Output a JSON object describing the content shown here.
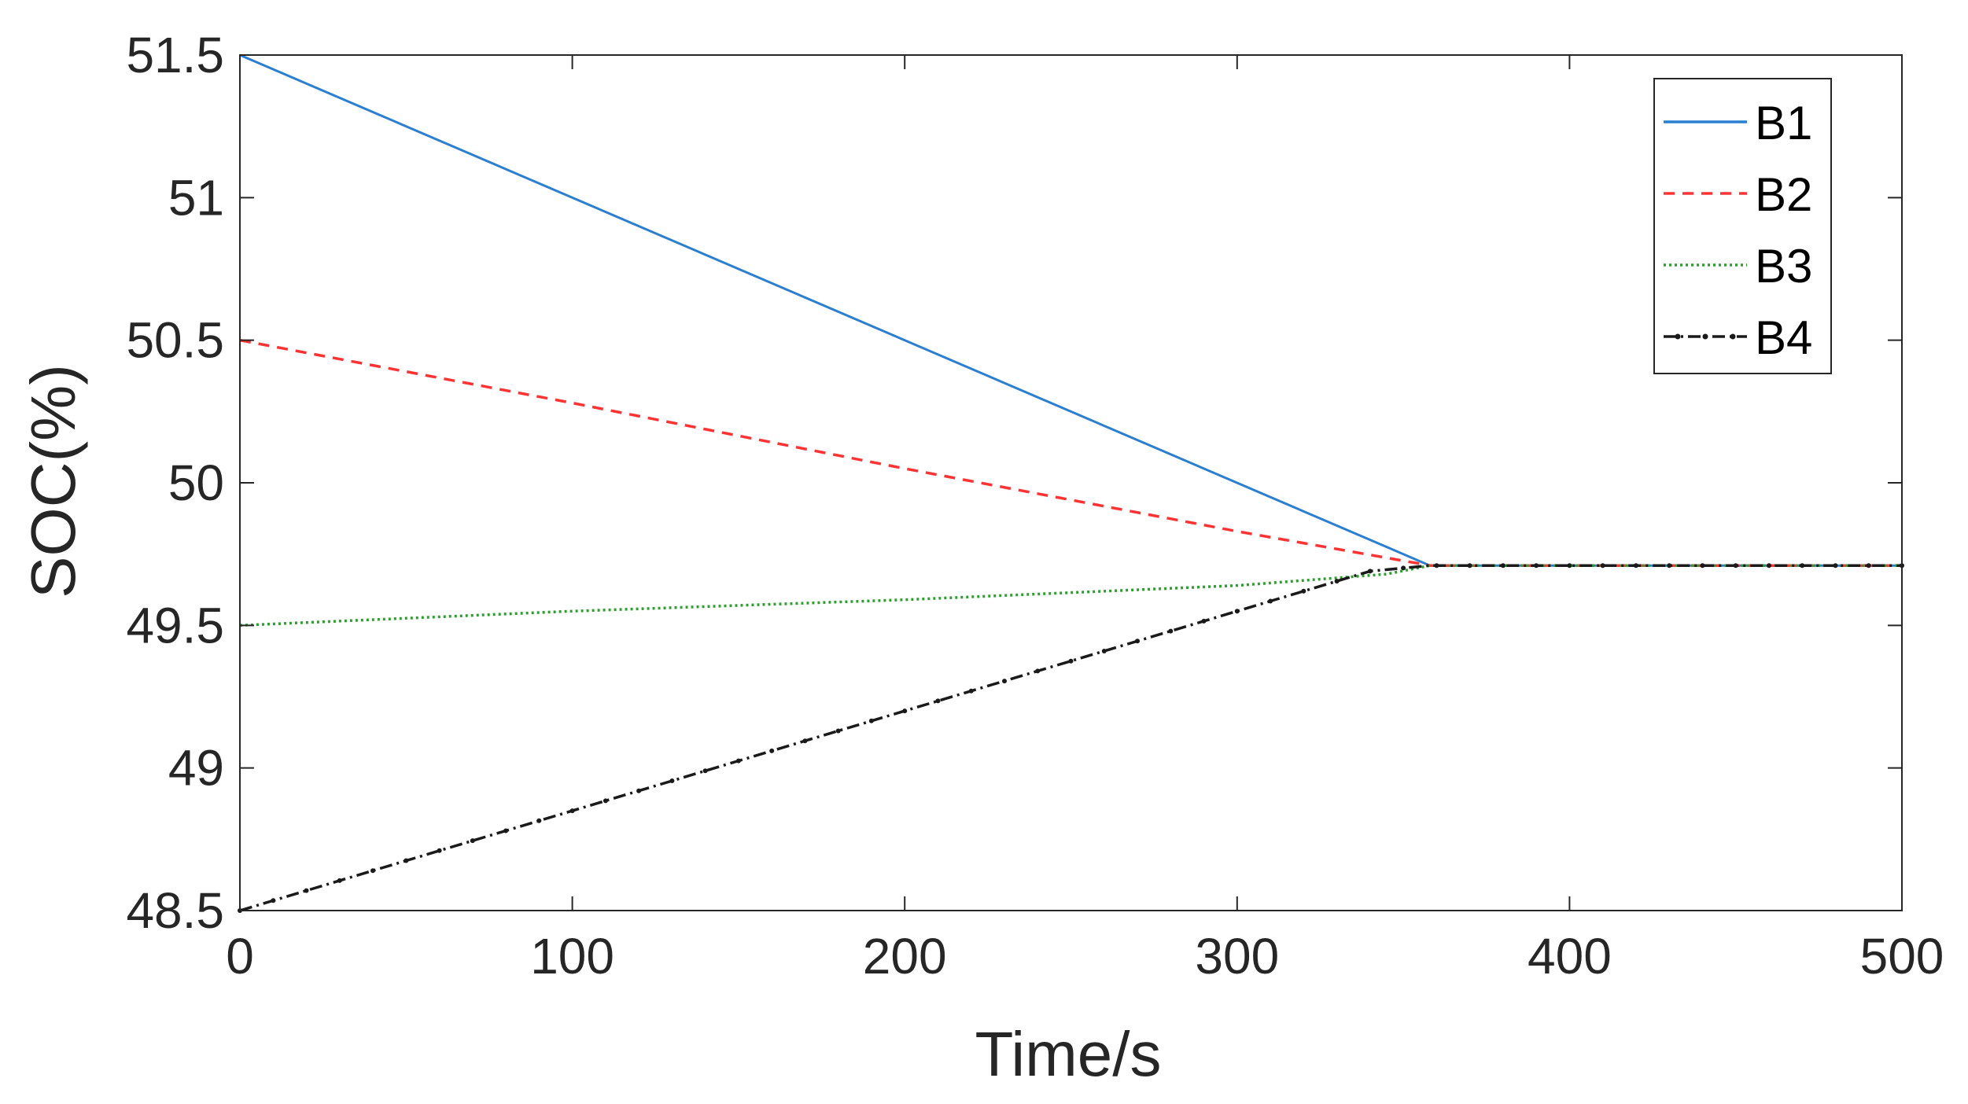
{
  "chart_data": {
    "type": "line",
    "title": "",
    "xlabel": "Time/s",
    "ylabel": "SOC(%)",
    "xlim": [
      0,
      500
    ],
    "ylim": [
      48.5,
      51.5
    ],
    "xticks": [
      0,
      100,
      200,
      300,
      400,
      500
    ],
    "xtick_labels": [
      "0",
      "100",
      "200",
      "300",
      "400",
      "500"
    ],
    "yticks": [
      48.5,
      49,
      49.5,
      50,
      50.5,
      51,
      51.5
    ],
    "ytick_labels": [
      "48.5",
      "49",
      "49.5",
      "50",
      "50.5",
      "51",
      "51.5"
    ],
    "grid": false,
    "box": true,
    "legend_position": "top-right",
    "series": [
      {
        "name": "B1",
        "color": "#2a7fd0",
        "style": "solid",
        "x": [
          0,
          358,
          500
        ],
        "y": [
          51.5,
          49.71,
          49.71
        ]
      },
      {
        "name": "B2",
        "color": "#ff3333",
        "style": "dashed",
        "x": [
          0,
          100,
          200,
          300,
          358,
          500
        ],
        "y": [
          50.5,
          50.28,
          50.05,
          49.83,
          49.71,
          49.71
        ]
      },
      {
        "name": "B3",
        "color": "#2ca02c",
        "style": "dotted",
        "x": [
          0,
          100,
          200,
          300,
          345,
          358,
          500
        ],
        "y": [
          49.5,
          49.55,
          49.59,
          49.64,
          49.68,
          49.71,
          49.71
        ]
      },
      {
        "name": "B4",
        "color": "#1a1a1a",
        "style": "dash-dot",
        "x": [
          0,
          100,
          200,
          300,
          340,
          358,
          500
        ],
        "y": [
          48.5,
          48.85,
          49.2,
          49.55,
          49.69,
          49.71,
          49.71
        ]
      }
    ]
  }
}
